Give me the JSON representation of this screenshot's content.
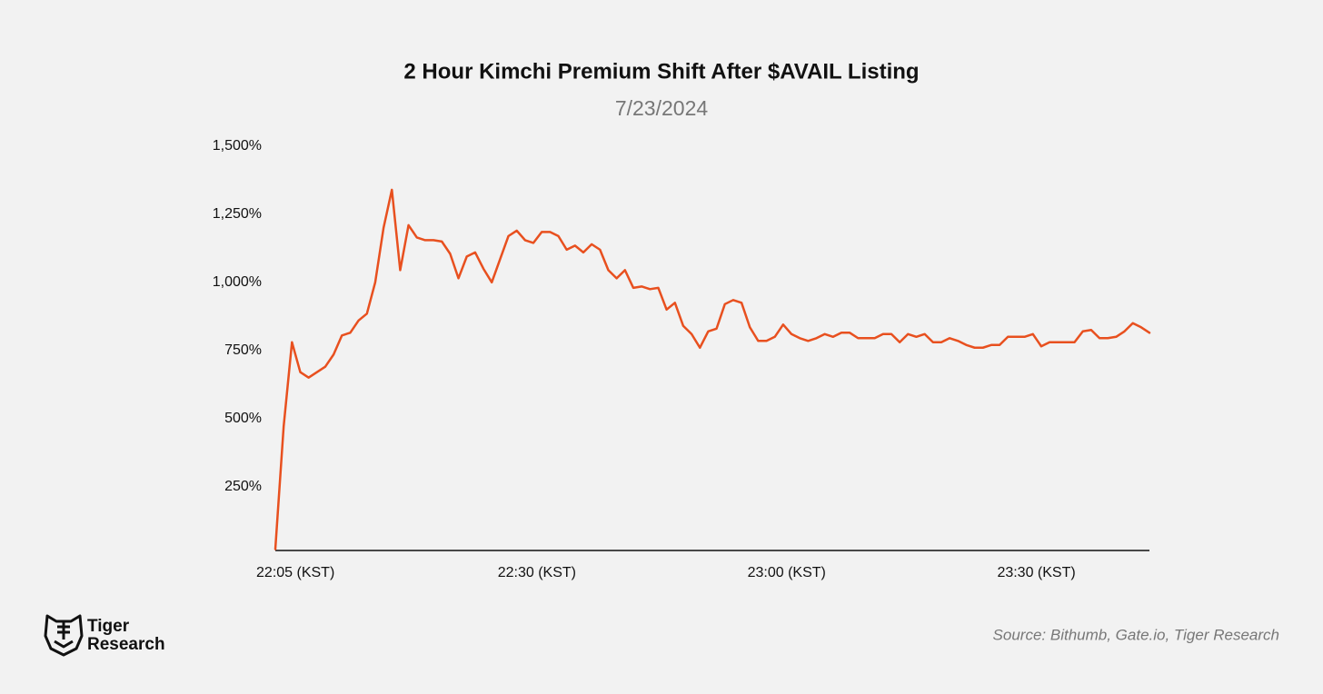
{
  "chart_data": {
    "type": "line",
    "title": "2 Hour Kimchi Premium Shift After $AVAIL Listing",
    "subtitle": "7/23/2024",
    "source": "Source: Bithumb, Gate.io, Tiger Research",
    "logo": [
      "Tiger",
      "Research"
    ],
    "categories": [
      null,
      "22:05 (KST)",
      null,
      null,
      null,
      null,
      null,
      null,
      null,
      null,
      null,
      null,
      null,
      null,
      null,
      null,
      null,
      null,
      null,
      null,
      null,
      null,
      null,
      null,
      null,
      null,
      null,
      null,
      null,
      null,
      "22:30 (KST)",
      null,
      null,
      null,
      null,
      null,
      null,
      null,
      null,
      null,
      null,
      null,
      null,
      null,
      null,
      null,
      null,
      null,
      null,
      null,
      null,
      null,
      null,
      null,
      null,
      null,
      null,
      null,
      null,
      null,
      "23:00 (KST)",
      null,
      null,
      null,
      null,
      null,
      null,
      null,
      null,
      null,
      null,
      null,
      null,
      null,
      null,
      null,
      null,
      null,
      null,
      null,
      null,
      null,
      null,
      null,
      null,
      null,
      null,
      null,
      null,
      null,
      "23:30 (KST)",
      null,
      null,
      null,
      null,
      null,
      null,
      null,
      null,
      null,
      null,
      null,
      null,
      null,
      null,
      null
    ],
    "series": [
      {
        "name": "Kimchi Premium",
        "color": "#e8501f",
        "values": [
          20,
          470,
          780,
          670,
          650,
          670,
          690,
          735,
          805,
          815,
          860,
          885,
          1000,
          1200,
          1340,
          1045,
          1210,
          1165,
          1155,
          1155,
          1150,
          1105,
          1015,
          1095,
          1110,
          1050,
          1000,
          1085,
          1170,
          1190,
          1155,
          1145,
          1185,
          1185,
          1170,
          1120,
          1135,
          1110,
          1140,
          1120,
          1045,
          1015,
          1045,
          980,
          985,
          975,
          980,
          900,
          925,
          840,
          810,
          760,
          820,
          830,
          920,
          935,
          925,
          835,
          785,
          785,
          800,
          845,
          810,
          795,
          785,
          795,
          810,
          800,
          815,
          815,
          795,
          795,
          795,
          810,
          810,
          780,
          810,
          800,
          810,
          780,
          780,
          795,
          785,
          770,
          760,
          760,
          770,
          770,
          800,
          800,
          800,
          810,
          765,
          780,
          780,
          780,
          780,
          820,
          825,
          795,
          795,
          800,
          820,
          850,
          835,
          815
        ]
      }
    ],
    "ylim": [
      0,
      1500
    ],
    "yticks": [
      {
        "value": 250,
        "label": "250%"
      },
      {
        "value": 500,
        "label": "500%"
      },
      {
        "value": 750,
        "label": "750%"
      },
      {
        "value": 1000,
        "label": "1,000%"
      },
      {
        "value": 1250,
        "label": "1,250%"
      },
      {
        "value": 1500,
        "label": "1,500%"
      }
    ],
    "grid": false
  }
}
